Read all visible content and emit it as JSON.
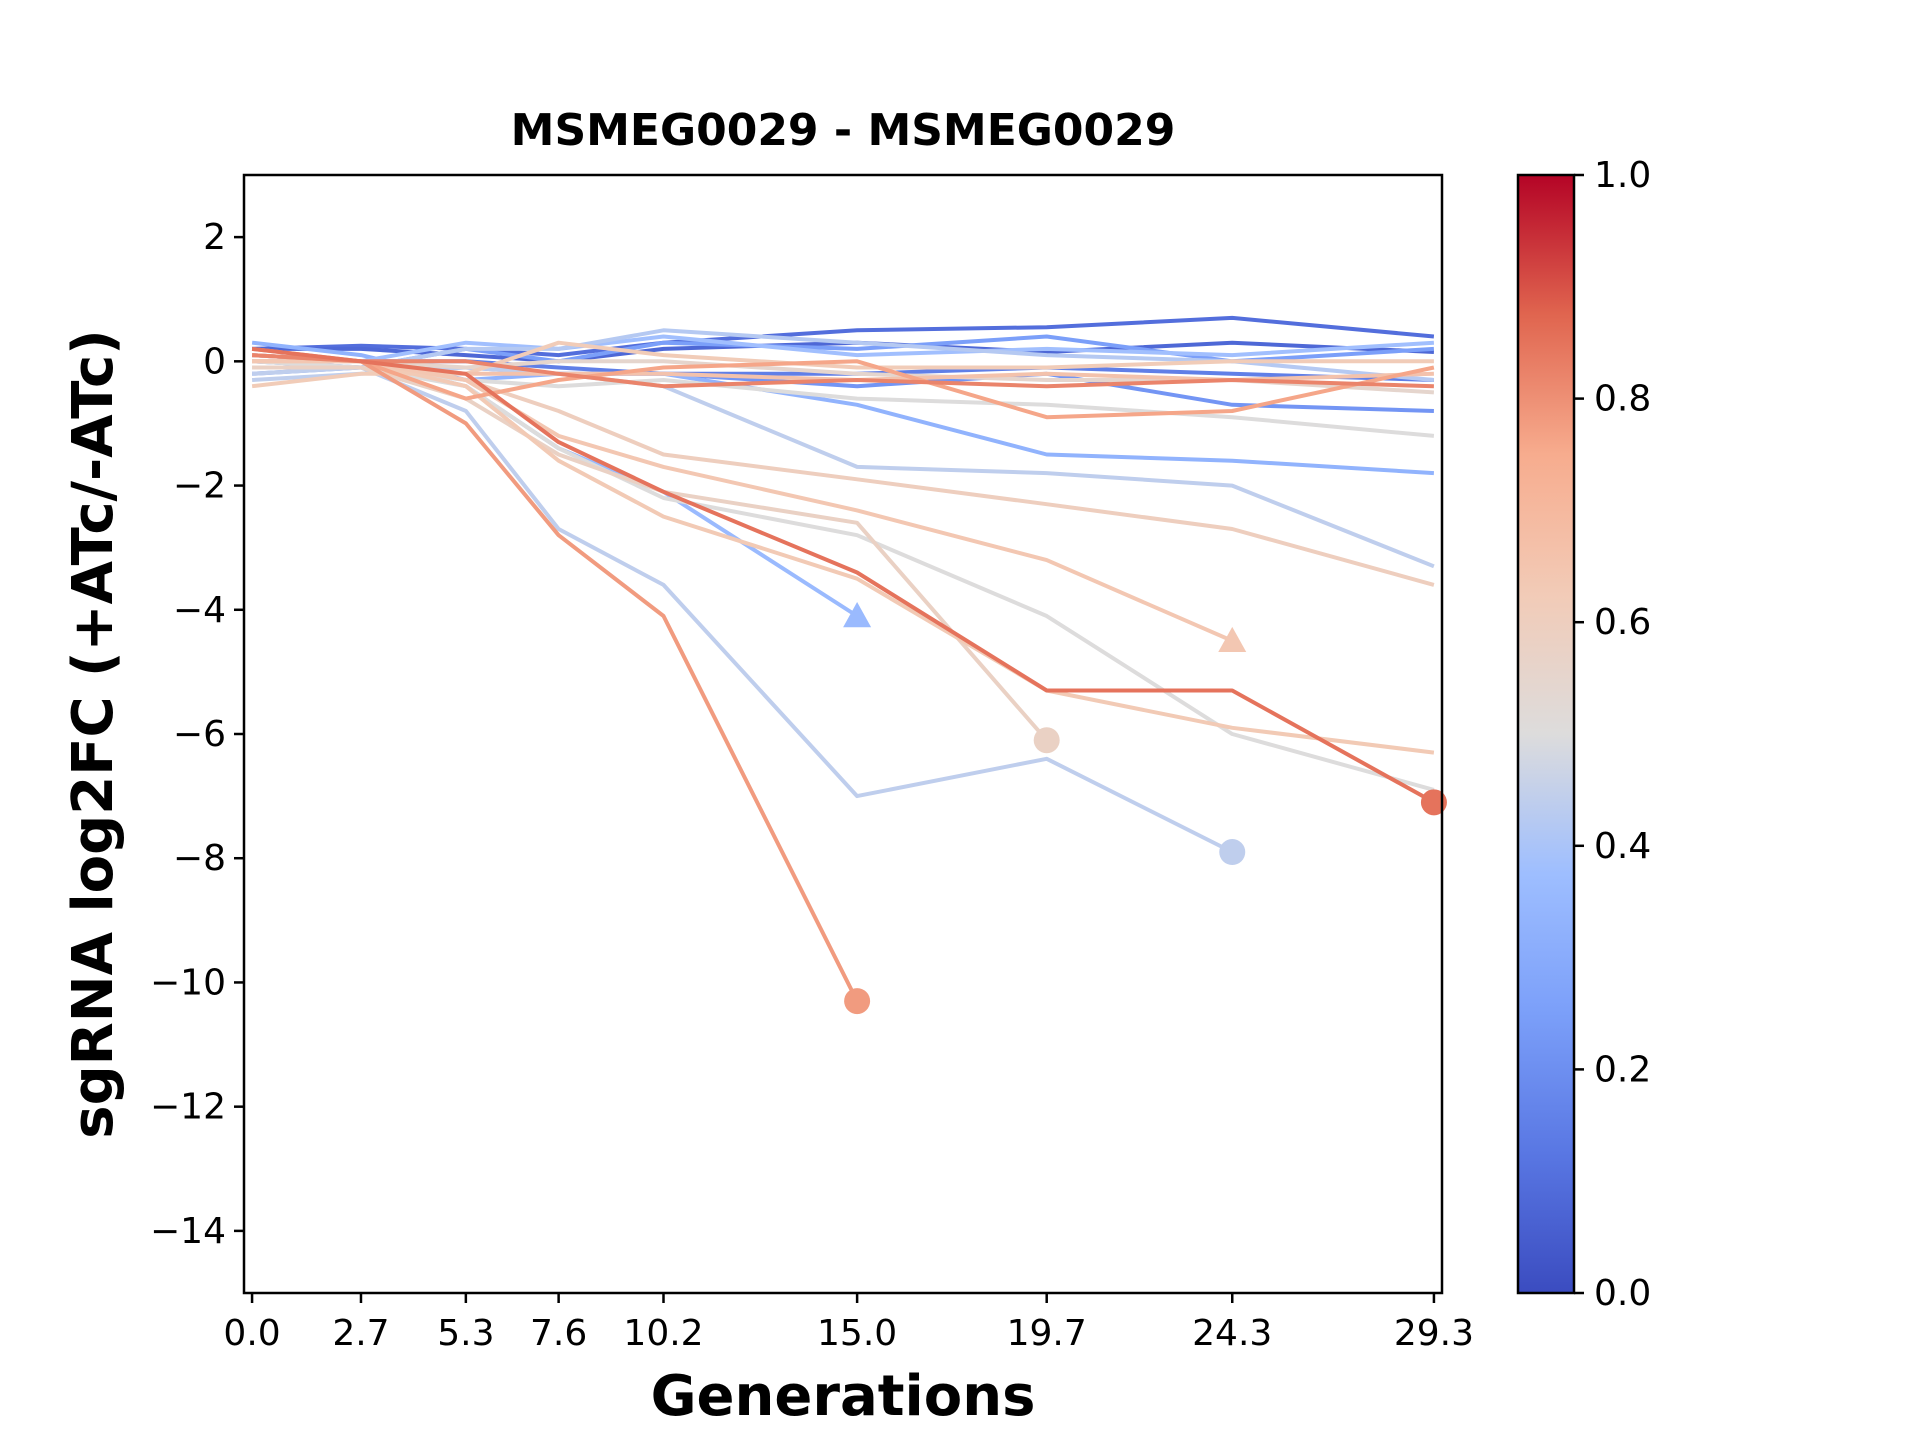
{
  "chart_data": {
    "type": "line",
    "title": "MSMEG0029 - MSMEG0029",
    "xlabel": "Generations",
    "ylabel": "sgRNA log2FC (+ATc/-ATc)",
    "x_ticks": [
      0.0,
      2.7,
      5.3,
      7.6,
      10.2,
      15.0,
      19.7,
      24.3,
      29.3
    ],
    "x_tick_labels": [
      "0.0",
      "2.7",
      "5.3",
      "7.6",
      "10.2",
      "15.0",
      "19.7",
      "24.3",
      "29.3"
    ],
    "xlim": [
      -0.2,
      29.5
    ],
    "y_ticks": [
      2,
      0,
      -2,
      -4,
      -6,
      -8,
      -10,
      -12,
      -14
    ],
    "y_tick_labels": [
      "2",
      "−2",
      "−4",
      "−6",
      "−8",
      "−10",
      "−12",
      "−14"
    ],
    "y_tick_labels_all": [
      "2",
      "0",
      "−2",
      "−4",
      "−6",
      "−8",
      "−10",
      "−12",
      "−14"
    ],
    "ylim": [
      -15,
      3
    ],
    "grid": false,
    "colorbar": {
      "colormap": "coolwarm",
      "range": [
        0.0,
        1.0
      ],
      "ticks": [
        0.0,
        0.2,
        0.4,
        0.6,
        0.8,
        1.0
      ],
      "tick_labels": [
        "0.0",
        "0.2",
        "0.4",
        "0.6",
        "0.8",
        "1.0"
      ]
    },
    "series": [
      {
        "c": 0.1,
        "x": [
          0.0,
          2.7,
          5.3,
          7.6,
          10.2,
          15.0,
          19.7,
          24.3,
          29.3
        ],
        "y": [
          0.2,
          0.25,
          0.2,
          0.1,
          0.3,
          0.5,
          0.55,
          0.7,
          0.4
        ],
        "end_marker": "none"
      },
      {
        "c": 0.08,
        "x": [
          0.0,
          2.7,
          5.3,
          7.6,
          10.2,
          15.0,
          19.7,
          24.3,
          29.3
        ],
        "y": [
          0.2,
          0.2,
          0.1,
          0.0,
          0.2,
          0.3,
          0.15,
          0.3,
          0.15
        ],
        "end_marker": "none"
      },
      {
        "c": 0.15,
        "x": [
          0.0,
          2.7,
          5.3,
          7.6,
          10.2,
          15.0,
          19.7,
          24.3,
          29.3
        ],
        "y": [
          0.1,
          0.0,
          0.0,
          -0.1,
          -0.2,
          -0.2,
          -0.1,
          -0.2,
          -0.3
        ],
        "end_marker": "none"
      },
      {
        "c": 0.22,
        "x": [
          0.0,
          2.7,
          5.3,
          7.6,
          10.2,
          15.0,
          19.7,
          24.3,
          29.3
        ],
        "y": [
          0.0,
          -0.1,
          -0.1,
          -0.2,
          -0.2,
          -0.4,
          -0.2,
          -0.7,
          -0.8
        ],
        "end_marker": "none"
      },
      {
        "c": 0.25,
        "x": [
          0.0,
          2.7,
          5.3,
          7.6,
          10.2,
          15.0,
          19.7,
          24.3,
          29.3
        ],
        "y": [
          -0.2,
          -0.1,
          0.2,
          0.0,
          0.3,
          0.2,
          0.4,
          0.0,
          0.2
        ],
        "end_marker": "none"
      },
      {
        "c": 0.33,
        "x": [
          0.0,
          2.7,
          5.3,
          7.6,
          10.2,
          15.0,
          19.7,
          24.3,
          29.3
        ],
        "y": [
          0.3,
          0.1,
          -0.3,
          -0.2,
          -0.2,
          -0.7,
          -1.5,
          -1.6,
          -1.8
        ],
        "end_marker": "none"
      },
      {
        "c": 0.36,
        "x": [
          0.0,
          2.7,
          5.3,
          7.6,
          10.2,
          15.0
        ],
        "y": [
          0.1,
          0.0,
          -0.4,
          -1.4,
          -2.1,
          -4.1
        ],
        "end_marker": "triangle"
      },
      {
        "c": 0.38,
        "x": [
          0.0,
          2.7,
          5.3,
          7.6,
          10.2,
          15.0,
          19.7,
          24.3,
          29.3
        ],
        "y": [
          0.0,
          0.0,
          0.3,
          0.2,
          0.4,
          0.1,
          0.2,
          0.1,
          0.3
        ],
        "end_marker": "none"
      },
      {
        "c": 0.42,
        "x": [
          0.0,
          2.7,
          5.3,
          7.6,
          10.2,
          15.0,
          19.7,
          24.3,
          29.3
        ],
        "y": [
          0.0,
          -0.1,
          0.2,
          0.2,
          0.5,
          0.3,
          0.1,
          0.0,
          -0.3
        ],
        "end_marker": "none"
      },
      {
        "c": 0.44,
        "x": [
          0.0,
          2.7,
          5.3,
          7.6,
          10.2,
          15.0,
          19.7,
          24.3,
          29.3
        ],
        "y": [
          -0.3,
          -0.2,
          -0.1,
          -0.2,
          -0.4,
          -1.7,
          -1.8,
          -2.0,
          -3.3
        ],
        "end_marker": "none"
      },
      {
        "c": 0.44,
        "x": [
          0.0,
          2.7,
          5.3,
          7.6,
          10.2,
          15.0,
          19.7,
          24.3
        ],
        "y": [
          -0.2,
          -0.1,
          -0.8,
          -2.7,
          -3.6,
          -7.0,
          -6.4,
          -7.9
        ],
        "end_marker": "circle"
      },
      {
        "c": 0.5,
        "x": [
          0.0,
          2.7,
          5.3,
          7.6,
          10.2,
          15.0,
          19.7,
          24.3,
          29.3
        ],
        "y": [
          -0.1,
          -0.1,
          -0.3,
          -0.4,
          -0.3,
          -0.6,
          -0.7,
          -0.9,
          -1.2
        ],
        "end_marker": "none"
      },
      {
        "c": 0.5,
        "x": [
          0.0,
          2.7,
          5.3,
          7.6,
          10.2,
          15.0,
          19.7,
          24.3,
          29.3
        ],
        "y": [
          0.0,
          -0.1,
          -0.4,
          -1.4,
          -2.2,
          -2.8,
          -4.1,
          -6.0,
          -6.9
        ],
        "end_marker": "none"
      },
      {
        "c": 0.55,
        "x": [
          0.0,
          2.7,
          5.3,
          7.6,
          10.2,
          15.0,
          19.7,
          24.3,
          29.3
        ],
        "y": [
          0.0,
          0.0,
          -0.1,
          0.0,
          0.0,
          -0.2,
          -0.3,
          -0.3,
          -0.5
        ],
        "end_marker": "none"
      },
      {
        "c": 0.58,
        "x": [
          0.0,
          2.7,
          5.3,
          7.6,
          10.2,
          15.0,
          19.7
        ],
        "y": [
          -0.1,
          -0.1,
          -0.6,
          -1.5,
          -2.1,
          -2.6,
          -6.1
        ],
        "end_marker": "circle"
      },
      {
        "c": 0.6,
        "x": [
          0.0,
          2.7,
          5.3,
          7.6,
          10.2,
          15.0,
          19.7,
          24.3,
          29.3
        ],
        "y": [
          0.0,
          0.0,
          -0.3,
          -0.8,
          -1.5,
          -1.9,
          -2.3,
          -2.7,
          -3.6
        ],
        "end_marker": "none"
      },
      {
        "c": 0.62,
        "x": [
          0.0,
          2.7,
          5.3,
          7.6,
          10.2,
          15.0,
          19.7,
          24.3,
          29.3
        ],
        "y": [
          -0.4,
          -0.2,
          -0.2,
          0.3,
          0.1,
          -0.1,
          -0.1,
          0.0,
          0.0
        ],
        "end_marker": "none"
      },
      {
        "c": 0.63,
        "x": [
          0.0,
          2.7,
          5.3,
          7.6,
          10.2,
          15.0,
          19.7,
          24.3,
          29.3
        ],
        "y": [
          0.0,
          0.0,
          -0.4,
          -1.6,
          -2.5,
          -3.5,
          -5.3,
          -5.9,
          -6.3
        ],
        "end_marker": "none"
      },
      {
        "c": 0.64,
        "x": [
          0.0,
          2.7,
          5.3,
          7.6,
          10.2,
          15.0,
          19.7,
          24.3
        ],
        "y": [
          0.0,
          0.0,
          -0.3,
          -1.2,
          -1.7,
          -2.4,
          -3.2,
          -4.5
        ],
        "end_marker": "triangle"
      },
      {
        "c": 0.66,
        "x": [
          0.0,
          2.7,
          5.3,
          7.6,
          10.2,
          15.0,
          19.7,
          24.3,
          29.3
        ],
        "y": [
          0.1,
          0.0,
          -0.2,
          -0.2,
          -0.2,
          -0.3,
          -0.2,
          -0.3,
          -0.2
        ],
        "end_marker": "none"
      },
      {
        "c": 0.76,
        "x": [
          0.0,
          2.7,
          5.3,
          7.6,
          10.2,
          15.0,
          19.7,
          24.3,
          29.3
        ],
        "y": [
          0.1,
          0.0,
          -0.6,
          -0.3,
          -0.1,
          0.0,
          -0.9,
          -0.8,
          -0.1
        ],
        "end_marker": "none"
      },
      {
        "c": 0.78,
        "x": [
          0.0,
          2.7,
          5.3,
          7.6,
          10.2,
          15.0
        ],
        "y": [
          0.2,
          0.0,
          -1.0,
          -2.8,
          -4.1,
          -10.3
        ],
        "end_marker": "circle"
      },
      {
        "c": 0.82,
        "x": [
          0.0,
          2.7,
          5.3,
          7.6,
          10.2,
          15.0,
          19.7,
          24.3,
          29.3
        ],
        "y": [
          0.1,
          0.0,
          0.0,
          -0.2,
          -0.4,
          -0.3,
          -0.4,
          -0.3,
          -0.4
        ],
        "end_marker": "none"
      },
      {
        "c": 0.85,
        "x": [
          0.0,
          2.7,
          5.3,
          7.6,
          10.2,
          15.0,
          19.7,
          24.3,
          29.3
        ],
        "y": [
          0.2,
          0.0,
          -0.2,
          -1.3,
          -2.1,
          -3.4,
          -5.3,
          -5.3,
          -7.1
        ],
        "end_marker": "circle"
      }
    ]
  }
}
